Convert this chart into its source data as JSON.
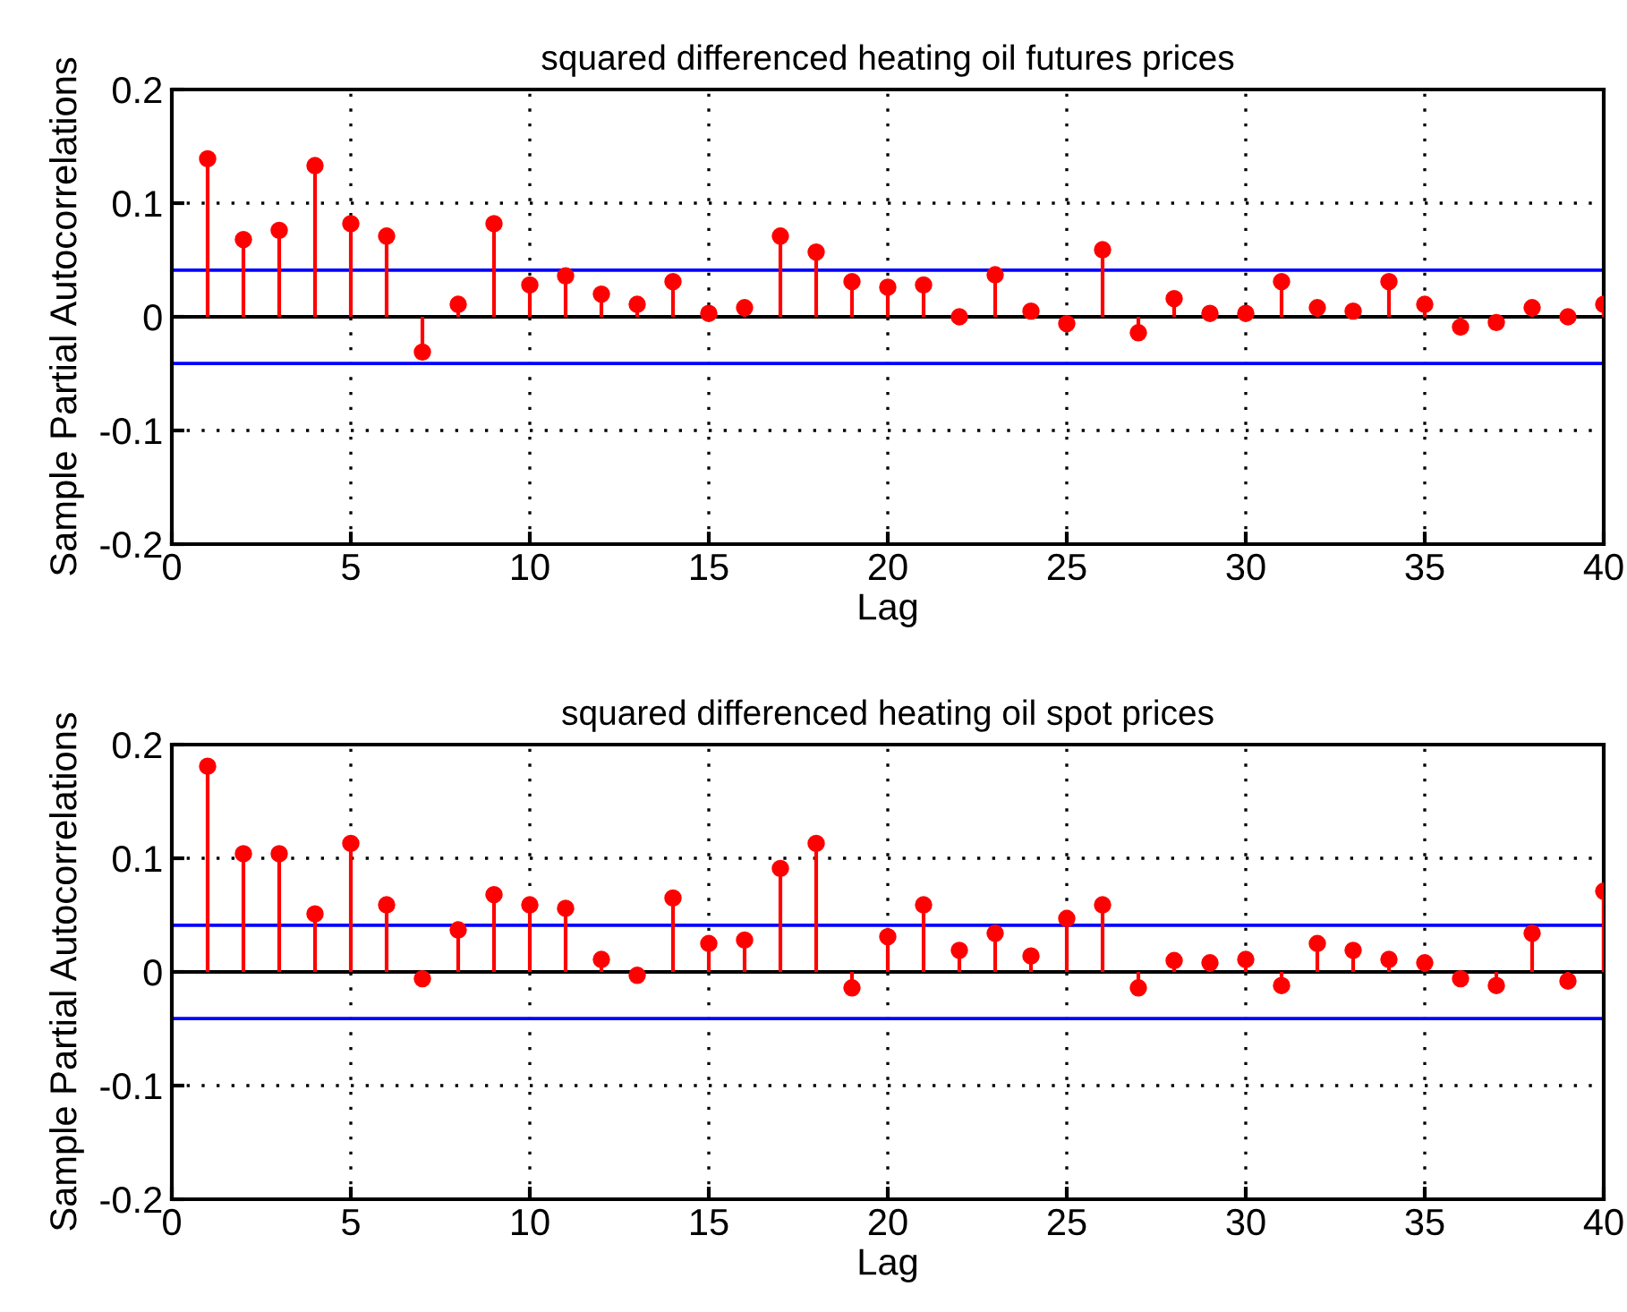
{
  "chart_data": [
    {
      "type": "lollipop",
      "title": "squared differenced heating oil futures prices",
      "xlabel": "Lag",
      "ylabel": "Sample Partial Autocorrelations",
      "x": [
        1,
        2,
        3,
        4,
        5,
        6,
        7,
        8,
        9,
        10,
        11,
        12,
        13,
        14,
        15,
        16,
        17,
        18,
        19,
        20,
        21,
        22,
        23,
        24,
        25,
        26,
        27,
        28,
        29,
        30,
        31,
        32,
        33,
        34,
        35,
        36,
        37,
        38,
        39,
        40
      ],
      "series": [
        {
          "color": "#ff0000",
          "values": [
            0.139,
            0.068,
            0.076,
            0.133,
            0.082,
            0.071,
            -0.031,
            0.011,
            0.082,
            0.028,
            0.036,
            0.02,
            0.011,
            0.031,
            0.003,
            0.008,
            0.071,
            0.057,
            0.031,
            0.026,
            0.028,
            0.0,
            0.037,
            0.005,
            -0.006,
            0.059,
            -0.014,
            0.016,
            0.003,
            0.003,
            0.031,
            0.008,
            0.005,
            0.031,
            0.011,
            -0.009,
            -0.005,
            0.008,
            0.0,
            0.011
          ]
        }
      ],
      "ref_lines": [
        {
          "axis": "y",
          "value": 0.041,
          "color": "#0000ff"
        },
        {
          "axis": "y",
          "value": -0.041,
          "color": "#0000ff"
        }
      ],
      "xlim": [
        0,
        40
      ],
      "xticks": [
        0,
        5,
        10,
        15,
        20,
        25,
        30,
        35,
        40
      ],
      "ylim": [
        -0.2,
        0.2
      ],
      "yticks": [
        -0.2,
        -0.1,
        0,
        0.1,
        0.2
      ],
      "grid": true,
      "marker": "circle"
    },
    {
      "type": "lollipop",
      "title": "squared differenced heating oil spot prices",
      "xlabel": "Lag",
      "ylabel": "Sample Partial Autocorrelations",
      "x": [
        1,
        2,
        3,
        4,
        5,
        6,
        7,
        8,
        9,
        10,
        11,
        12,
        13,
        14,
        15,
        16,
        17,
        18,
        19,
        20,
        21,
        22,
        23,
        24,
        25,
        26,
        27,
        28,
        29,
        30,
        31,
        32,
        33,
        34,
        35,
        36,
        37,
        38,
        39,
        40
      ],
      "series": [
        {
          "color": "#ff0000",
          "values": [
            0.181,
            0.104,
            0.104,
            0.051,
            0.113,
            0.059,
            -0.006,
            0.037,
            0.068,
            0.059,
            0.056,
            0.011,
            -0.003,
            0.065,
            0.025,
            0.028,
            0.091,
            0.113,
            -0.014,
            0.031,
            0.059,
            0.019,
            0.034,
            0.014,
            0.047,
            0.059,
            -0.014,
            0.01,
            0.008,
            0.011,
            -0.012,
            0.025,
            0.019,
            0.011,
            0.008,
            -0.006,
            -0.012,
            0.034,
            -0.008,
            0.071
          ]
        }
      ],
      "ref_lines": [
        {
          "axis": "y",
          "value": 0.041,
          "color": "#0000ff"
        },
        {
          "axis": "y",
          "value": -0.041,
          "color": "#0000ff"
        }
      ],
      "xlim": [
        0,
        40
      ],
      "xticks": [
        0,
        5,
        10,
        15,
        20,
        25,
        30,
        35,
        40
      ],
      "ylim": [
        -0.2,
        0.2
      ],
      "yticks": [
        -0.2,
        -0.1,
        0,
        0.1,
        0.2
      ],
      "grid": true,
      "marker": "circle"
    }
  ]
}
